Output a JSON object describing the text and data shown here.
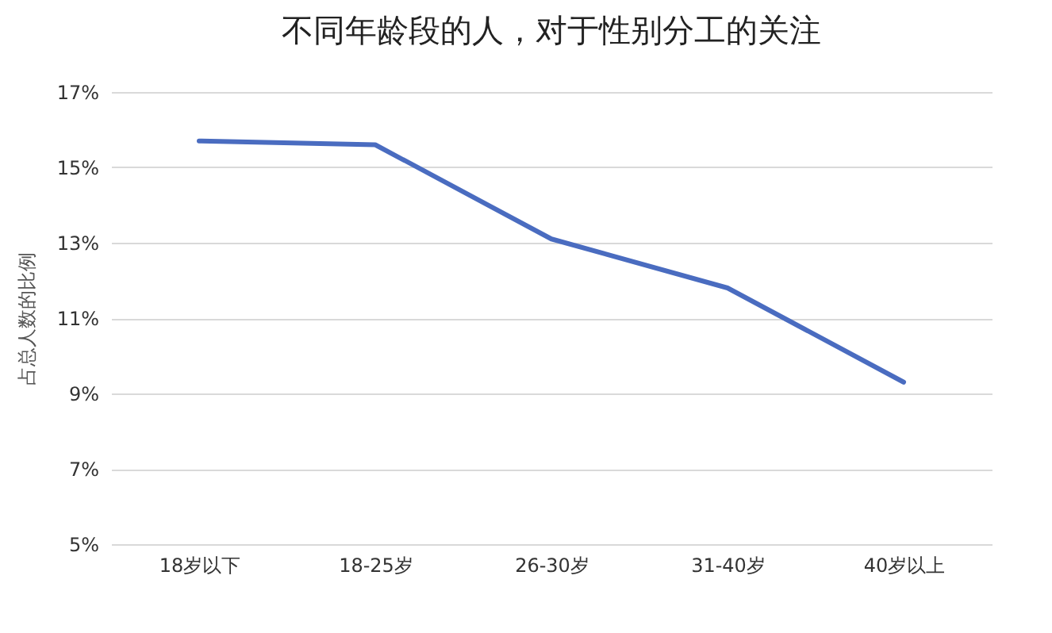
{
  "chart_data": {
    "type": "line",
    "title": "不同年龄段的人，对于性别分工的关注",
    "ylabel": "占总人数的比例",
    "categories": [
      "18岁以下",
      "18-25岁",
      "26-30岁",
      "31-40岁",
      "40岁以上"
    ],
    "series": [
      {
        "color": "#4a6cc0",
        "values": [
          15.7,
          15.6,
          13.1,
          11.8,
          9.3
        ]
      }
    ],
    "ylim": [
      5,
      17
    ],
    "yticks": [
      {
        "value": 5,
        "label": "5%"
      },
      {
        "value": 7,
        "label": "7%"
      },
      {
        "value": 9,
        "label": "9%"
      },
      {
        "value": 11,
        "label": "11%"
      },
      {
        "value": 13,
        "label": "13%"
      },
      {
        "value": 15,
        "label": "15%"
      },
      {
        "value": 17,
        "label": "17%"
      }
    ],
    "grid": "y",
    "marker": "none",
    "line_style": "solid"
  }
}
